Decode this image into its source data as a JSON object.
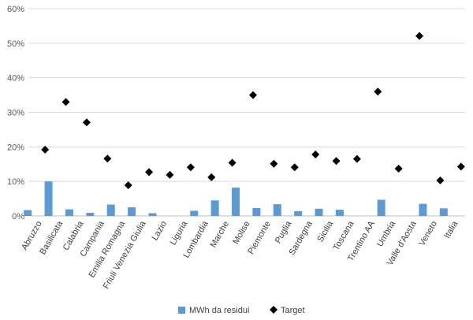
{
  "chart_data": {
    "type": "bar",
    "categories": [
      "Abruzzo",
      "Basilicata",
      "Calabria",
      "Campania",
      "Emilia Romagna",
      "Friuli Venezia Giulia",
      "Lazio",
      "Liguria",
      "Lombardia",
      "Marche",
      "Molise",
      "Piemonte",
      "Puglia",
      "Sardegna",
      "Sicilia",
      "Toscana",
      "Trentino AA",
      "Umbria",
      "Valle d'Aosta",
      "Veneto",
      "Italia"
    ],
    "series": [
      {
        "name": "MWh da residui",
        "mark": "bar",
        "color": "#5b9bd5",
        "values": [
          1.7,
          10.0,
          1.9,
          0.9,
          3.3,
          2.5,
          0.8,
          0.0,
          1.5,
          4.5,
          8.2,
          2.3,
          3.4,
          1.4,
          2.1,
          1.8,
          0.0,
          4.7,
          0.0,
          3.5,
          2.2
        ]
      },
      {
        "name": "Target",
        "mark": "diamond",
        "color": "#000000",
        "values": [
          19.2,
          33.0,
          27.1,
          16.6,
          8.9,
          12.7,
          11.9,
          14.1,
          11.2,
          15.4,
          35.0,
          15.1,
          14.1,
          17.8,
          15.9,
          16.5,
          36.0,
          13.7,
          52.1,
          10.3,
          14.3
        ]
      }
    ],
    "yticks": [
      "0%",
      "10%",
      "20%",
      "30%",
      "40%",
      "50%",
      "60%"
    ],
    "ylim": [
      0,
      60
    ],
    "y_unit": "%",
    "grid": true,
    "legend_position": "bottom"
  }
}
